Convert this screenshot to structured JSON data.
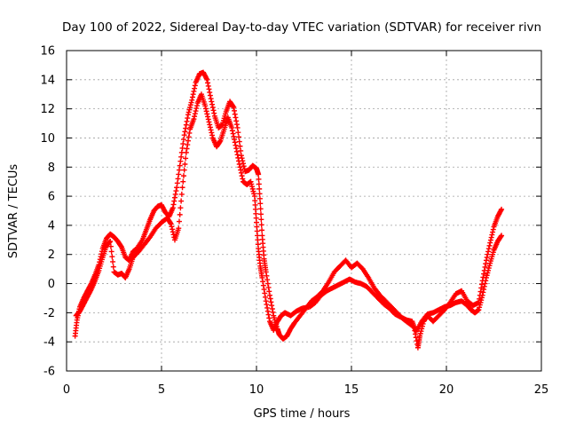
{
  "chart_data": {
    "type": "scatter",
    "title": "Day 100 of 2022, Sidereal Day-to-day VTEC variation (SDTVAR) for receiver rivn",
    "xlabel": "GPS time / hours",
    "ylabel": "SDTVAR / TECUs",
    "xlim": [
      0,
      25
    ],
    "ylim": [
      -6,
      16
    ],
    "xticks": [
      0,
      5,
      10,
      15,
      20,
      25
    ],
    "xtick_labels": [
      "0",
      "5",
      "10",
      "15",
      "20",
      "25"
    ],
    "yticks": [
      -6,
      -4,
      -2,
      0,
      2,
      4,
      6,
      8,
      10,
      12,
      14,
      16
    ],
    "ytick_labels": [
      "-6",
      "-4",
      "-2",
      "0",
      "2",
      "4",
      "6",
      "8",
      "10",
      "12",
      "14",
      "16"
    ],
    "grid": true,
    "marker": "+",
    "series": [
      {
        "name": "upper track",
        "color": "#ff0000",
        "points": [
          [
            0.45,
            -3.6
          ],
          [
            0.55,
            -2.5
          ],
          [
            0.7,
            -1.6
          ],
          [
            0.9,
            -1.0
          ],
          [
            1.1,
            -0.5
          ],
          [
            1.3,
            0.0
          ],
          [
            1.5,
            0.6
          ],
          [
            1.7,
            1.3
          ],
          [
            1.9,
            2.4
          ],
          [
            2.1,
            3.1
          ],
          [
            2.3,
            3.4
          ],
          [
            2.5,
            3.2
          ],
          [
            2.7,
            2.9
          ],
          [
            2.9,
            2.5
          ],
          [
            3.1,
            1.8
          ],
          [
            3.3,
            1.6
          ],
          [
            3.5,
            2.2
          ],
          [
            3.7,
            2.4
          ],
          [
            4.0,
            3.0
          ],
          [
            4.2,
            3.7
          ],
          [
            4.4,
            4.4
          ],
          [
            4.6,
            5.0
          ],
          [
            4.8,
            5.3
          ],
          [
            5.0,
            5.4
          ],
          [
            5.2,
            4.9
          ],
          [
            5.4,
            4.6
          ],
          [
            5.6,
            5.2
          ],
          [
            5.8,
            6.6
          ],
          [
            6.0,
            8.4
          ],
          [
            6.2,
            10.2
          ],
          [
            6.4,
            11.6
          ],
          [
            6.6,
            12.6
          ],
          [
            6.8,
            13.8
          ],
          [
            7.0,
            14.4
          ],
          [
            7.2,
            14.5
          ],
          [
            7.4,
            14.0
          ],
          [
            7.6,
            12.7
          ],
          [
            7.8,
            11.5
          ],
          [
            8.0,
            10.7
          ],
          [
            8.2,
            10.9
          ],
          [
            8.4,
            11.8
          ],
          [
            8.6,
            12.5
          ],
          [
            8.8,
            12.1
          ],
          [
            9.0,
            10.7
          ],
          [
            9.2,
            8.8
          ],
          [
            9.4,
            7.7
          ],
          [
            9.6,
            7.8
          ],
          [
            9.8,
            8.1
          ],
          [
            10.0,
            7.9
          ],
          [
            10.1,
            7.5
          ],
          [
            10.2,
            5.5
          ],
          [
            10.3,
            3.3
          ],
          [
            10.4,
            1.7
          ],
          [
            10.5,
            0.8
          ],
          [
            10.7,
            -0.8
          ],
          [
            10.9,
            -2.2
          ],
          [
            11.1,
            -3.1
          ],
          [
            11.2,
            -3.5
          ],
          [
            11.4,
            -3.8
          ],
          [
            11.6,
            -3.6
          ],
          [
            11.8,
            -3.1
          ],
          [
            12.0,
            -2.7
          ],
          [
            12.3,
            -2.2
          ],
          [
            12.6,
            -1.7
          ],
          [
            12.9,
            -1.2
          ],
          [
            13.2,
            -0.9
          ],
          [
            13.5,
            -0.5
          ],
          [
            13.8,
            0.1
          ],
          [
            14.1,
            0.8
          ],
          [
            14.4,
            1.2
          ],
          [
            14.7,
            1.6
          ],
          [
            15.0,
            1.1
          ],
          [
            15.3,
            1.4
          ],
          [
            15.6,
            1.0
          ],
          [
            15.9,
            0.4
          ],
          [
            16.2,
            -0.3
          ],
          [
            16.5,
            -0.8
          ],
          [
            16.8,
            -1.2
          ],
          [
            17.1,
            -1.6
          ],
          [
            17.4,
            -2.0
          ],
          [
            17.7,
            -2.4
          ],
          [
            18.0,
            -2.7
          ],
          [
            18.3,
            -3.0
          ],
          [
            18.5,
            -4.4
          ],
          [
            18.6,
            -3.6
          ],
          [
            18.8,
            -2.6
          ],
          [
            19.0,
            -2.2
          ],
          [
            19.3,
            -2.6
          ],
          [
            19.6,
            -2.2
          ],
          [
            19.9,
            -1.8
          ],
          [
            20.2,
            -1.3
          ],
          [
            20.5,
            -0.7
          ],
          [
            20.8,
            -0.5
          ],
          [
            21.1,
            -1.2
          ],
          [
            21.4,
            -1.5
          ],
          [
            21.7,
            -1.3
          ],
          [
            21.9,
            0.2
          ],
          [
            22.1,
            1.6
          ],
          [
            22.3,
            2.8
          ],
          [
            22.5,
            3.9
          ],
          [
            22.7,
            4.6
          ],
          [
            22.9,
            5.1
          ]
        ]
      },
      {
        "name": "lower track",
        "color": "#ff0000",
        "points": [
          [
            0.5,
            -2.2
          ],
          [
            0.7,
            -1.9
          ],
          [
            0.9,
            -1.4
          ],
          [
            1.1,
            -0.9
          ],
          [
            1.3,
            -0.4
          ],
          [
            1.5,
            0.2
          ],
          [
            1.7,
            0.9
          ],
          [
            1.9,
            1.8
          ],
          [
            2.1,
            2.6
          ],
          [
            2.3,
            2.9
          ],
          [
            2.5,
            0.8
          ],
          [
            2.7,
            0.6
          ],
          [
            2.9,
            0.7
          ],
          [
            3.1,
            0.4
          ],
          [
            3.3,
            1.0
          ],
          [
            3.5,
            1.8
          ],
          [
            3.8,
            2.2
          ],
          [
            4.1,
            2.7
          ],
          [
            4.4,
            3.2
          ],
          [
            4.7,
            3.8
          ],
          [
            5.0,
            4.2
          ],
          [
            5.3,
            4.5
          ],
          [
            5.5,
            4.1
          ],
          [
            5.7,
            3.0
          ],
          [
            5.9,
            3.8
          ],
          [
            6.1,
            6.6
          ],
          [
            6.3,
            9.0
          ],
          [
            6.5,
            10.6
          ],
          [
            6.7,
            11.3
          ],
          [
            6.9,
            12.4
          ],
          [
            7.1,
            13.0
          ],
          [
            7.3,
            12.2
          ],
          [
            7.5,
            11.1
          ],
          [
            7.7,
            10.0
          ],
          [
            7.9,
            9.4
          ],
          [
            8.1,
            9.8
          ],
          [
            8.3,
            10.6
          ],
          [
            8.5,
            11.4
          ],
          [
            8.7,
            10.7
          ],
          [
            8.9,
            9.5
          ],
          [
            9.1,
            8.2
          ],
          [
            9.3,
            7.0
          ],
          [
            9.5,
            6.8
          ],
          [
            9.7,
            7.0
          ],
          [
            9.9,
            6.0
          ],
          [
            10.0,
            4.2
          ],
          [
            10.1,
            2.4
          ],
          [
            10.2,
            1.2
          ],
          [
            10.3,
            0.4
          ],
          [
            10.5,
            -1.2
          ],
          [
            10.7,
            -2.6
          ],
          [
            10.9,
            -3.2
          ],
          [
            11.1,
            -2.6
          ],
          [
            11.3,
            -2.2
          ],
          [
            11.5,
            -2.0
          ],
          [
            11.8,
            -2.2
          ],
          [
            12.1,
            -1.9
          ],
          [
            12.4,
            -1.7
          ],
          [
            12.8,
            -1.6
          ],
          [
            13.1,
            -1.3
          ],
          [
            13.4,
            -0.8
          ],
          [
            13.7,
            -0.5
          ],
          [
            14.0,
            -0.3
          ],
          [
            14.3,
            -0.1
          ],
          [
            14.6,
            0.1
          ],
          [
            14.9,
            0.3
          ],
          [
            15.2,
            0.1
          ],
          [
            15.5,
            0.0
          ],
          [
            15.8,
            -0.2
          ],
          [
            16.1,
            -0.6
          ],
          [
            16.4,
            -1.0
          ],
          [
            16.7,
            -1.4
          ],
          [
            17.0,
            -1.7
          ],
          [
            17.3,
            -2.1
          ],
          [
            17.6,
            -2.3
          ],
          [
            17.9,
            -2.5
          ],
          [
            18.2,
            -2.6
          ],
          [
            18.4,
            -3.3
          ],
          [
            18.7,
            -2.6
          ],
          [
            19.0,
            -2.1
          ],
          [
            19.3,
            -2.0
          ],
          [
            19.6,
            -1.8
          ],
          [
            19.9,
            -1.6
          ],
          [
            20.2,
            -1.5
          ],
          [
            20.5,
            -1.3
          ],
          [
            20.8,
            -1.2
          ],
          [
            21.1,
            -1.5
          ],
          [
            21.3,
            -1.8
          ],
          [
            21.5,
            -2.0
          ],
          [
            21.7,
            -1.8
          ],
          [
            21.9,
            -0.8
          ],
          [
            22.1,
            0.4
          ],
          [
            22.3,
            1.4
          ],
          [
            22.5,
            2.3
          ],
          [
            22.7,
            2.9
          ],
          [
            22.9,
            3.3
          ]
        ]
      }
    ]
  }
}
